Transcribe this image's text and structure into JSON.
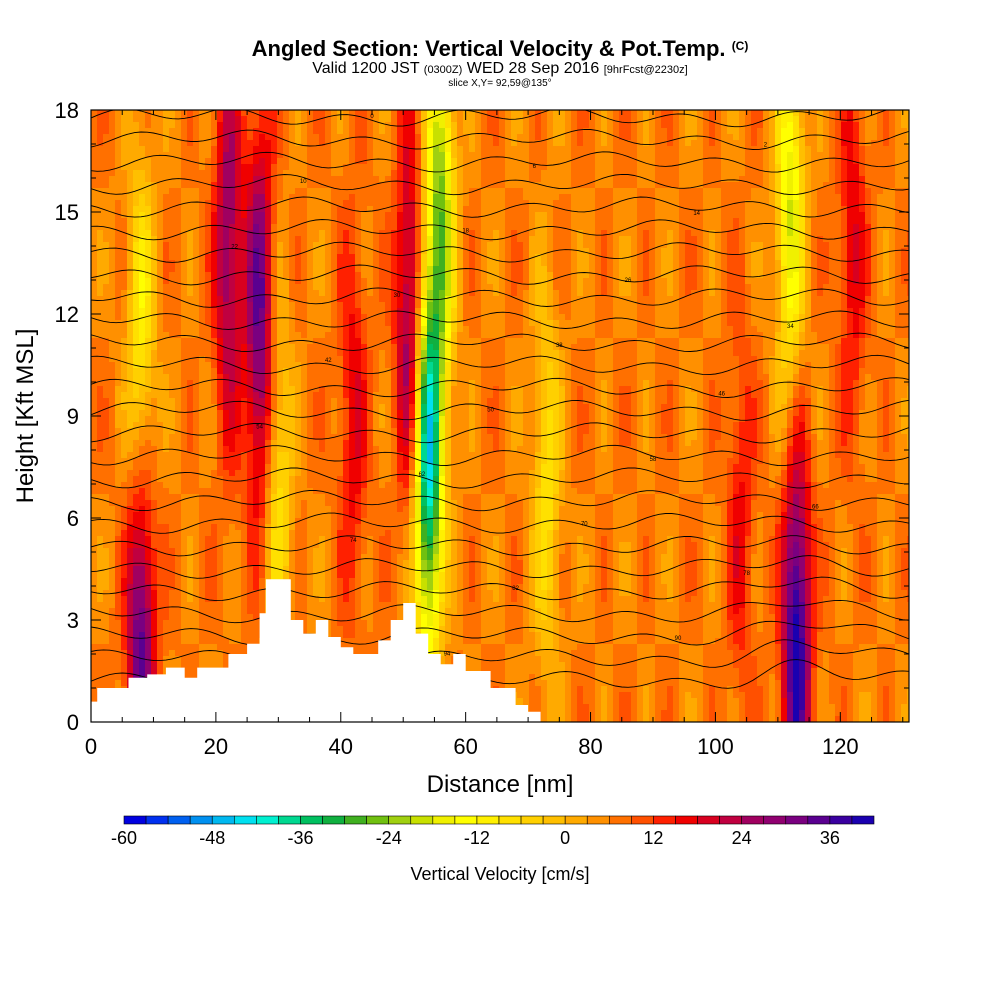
{
  "chart_data": {
    "type": "heatmap",
    "title": {
      "main": "Angled Section: Vertical Velocity & Pot.Temp.",
      "tag": "(C)",
      "valid_prefix": "Valid 1200 JST",
      "valid_utc": "(0300Z)",
      "valid_date": "WED 28 Sep 2016",
      "forecast": "[9hrFcst@2230z]",
      "slice": "slice X,Y= 92,59@135°"
    },
    "xlabel": "Distance [nm]",
    "ylabel": "Height [Kft MSL]",
    "xlim": [
      0,
      131
    ],
    "ylim": [
      0,
      18
    ],
    "x_ticks": [
      "0",
      "20",
      "40",
      "60",
      "80",
      "100",
      "120"
    ],
    "x_tick_values": [
      0,
      20,
      40,
      60,
      80,
      100,
      120
    ],
    "y_ticks": [
      "0",
      "3",
      "6",
      "9",
      "12",
      "15",
      "18"
    ],
    "y_tick_values": [
      0,
      3,
      6,
      9,
      12,
      15,
      18
    ],
    "colorbar": {
      "title": "Vertical Velocity [cm/s]",
      "labels": [
        "-60",
        "-48",
        "-36",
        "-24",
        "-12",
        "0",
        "12",
        "24",
        "36"
      ],
      "label_values": [
        -60,
        -48,
        -36,
        -24,
        -12,
        0,
        12,
        24,
        36
      ],
      "min": -60,
      "max": 42,
      "step": 3,
      "colors": [
        "#0000e0",
        "#0030f0",
        "#0060f0",
        "#0090f0",
        "#00b8f0",
        "#00e0f0",
        "#00f0d0",
        "#00d890",
        "#00c060",
        "#10b040",
        "#40b020",
        "#70c010",
        "#a0d010",
        "#c8e000",
        "#f0f000",
        "#ffff00",
        "#fff000",
        "#ffe000",
        "#ffd000",
        "#ffbf00",
        "#ffaa00",
        "#ff9000",
        "#ff7000",
        "#ff5000",
        "#ff2000",
        "#f00000",
        "#d80020",
        "#c00040",
        "#a00060",
        "#900070",
        "#7a0080",
        "#5a0090",
        "#3a00a0",
        "#1a00b0"
      ]
    },
    "updrafts": [
      {
        "x": 8,
        "z": 2.5,
        "w": 30
      },
      {
        "x": 22,
        "z": 14,
        "w": 22
      },
      {
        "x": 27,
        "z": 12,
        "w": 28
      },
      {
        "x": 42,
        "z": 9,
        "w": 12
      },
      {
        "x": 51,
        "z": 12,
        "w": 22
      },
      {
        "x": 104,
        "z": 6,
        "w": 10
      },
      {
        "x": 113,
        "z": 2.5,
        "w": 36
      },
      {
        "x": 122,
        "z": 14,
        "w": 12
      }
    ],
    "downdrafts": [
      {
        "x": 8,
        "z": 11,
        "w": -18
      },
      {
        "x": 30,
        "z": 7,
        "w": -14
      },
      {
        "x": 54,
        "z": 7.5,
        "w": -48
      },
      {
        "x": 56,
        "z": 15,
        "w": -30
      },
      {
        "x": 73,
        "z": 7,
        "w": -14
      },
      {
        "x": 112,
        "z": 15,
        "w": -24
      }
    ],
    "terrain_profile": {
      "x": [
        0,
        1,
        6,
        9,
        12,
        15,
        17,
        22,
        25,
        27,
        28,
        30,
        32,
        34,
        36,
        38,
        40,
        42,
        46,
        48,
        50,
        52,
        54,
        56,
        58,
        60,
        64,
        68,
        70,
        72
      ],
      "z": [
        0.6,
        1.0,
        1.3,
        1.4,
        1.6,
        1.3,
        1.6,
        2.0,
        2.3,
        3.2,
        4.2,
        4.2,
        3.0,
        2.6,
        3.0,
        2.5,
        2.2,
        2.0,
        2.4,
        3.0,
        3.5,
        2.6,
        2.0,
        1.7,
        2.0,
        1.5,
        1.0,
        0.5,
        0.3,
        0.0
      ]
    },
    "theta_contours": {
      "count": 26,
      "labels": [
        "0",
        "94",
        "90",
        "86",
        "82",
        "78",
        "74",
        "70",
        "66",
        "62",
        "58",
        "54",
        "50",
        "46",
        "42",
        "38",
        "34",
        "30",
        "26",
        "22",
        "18",
        "14",
        "10",
        "6",
        "2",
        "0"
      ]
    }
  }
}
